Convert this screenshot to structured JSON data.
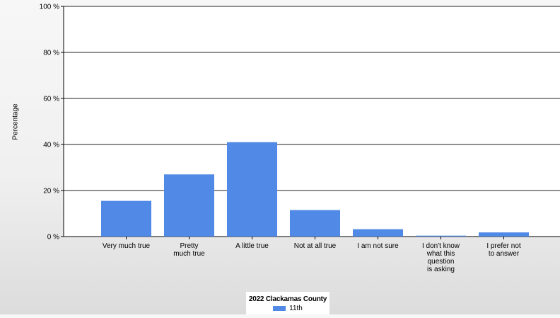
{
  "chart_data": {
    "type": "bar",
    "title": "",
    "xlabel": "",
    "ylabel": "Percentage",
    "ylim": [
      0,
      100
    ],
    "yticks": [
      0,
      20,
      40,
      60,
      80,
      100
    ],
    "ytick_labels": [
      "0 %",
      "20 %",
      "40 %",
      "60 %",
      "80 %",
      "100 %"
    ],
    "grid": true,
    "legend_position": "bottom-center",
    "legend_title": "2022 Clackamas County",
    "categories": [
      "Very much true",
      "Pretty\nmuch true",
      "A little true",
      "Not at all true",
      "I am not sure",
      "I don't know\nwhat this\nquestion\nis asking",
      "I prefer not\nto answer"
    ],
    "series": [
      {
        "name": "11th",
        "color": "#5089e6",
        "values": [
          15.5,
          27,
          41,
          11.5,
          3.2,
          0.4,
          1.8
        ]
      }
    ]
  }
}
